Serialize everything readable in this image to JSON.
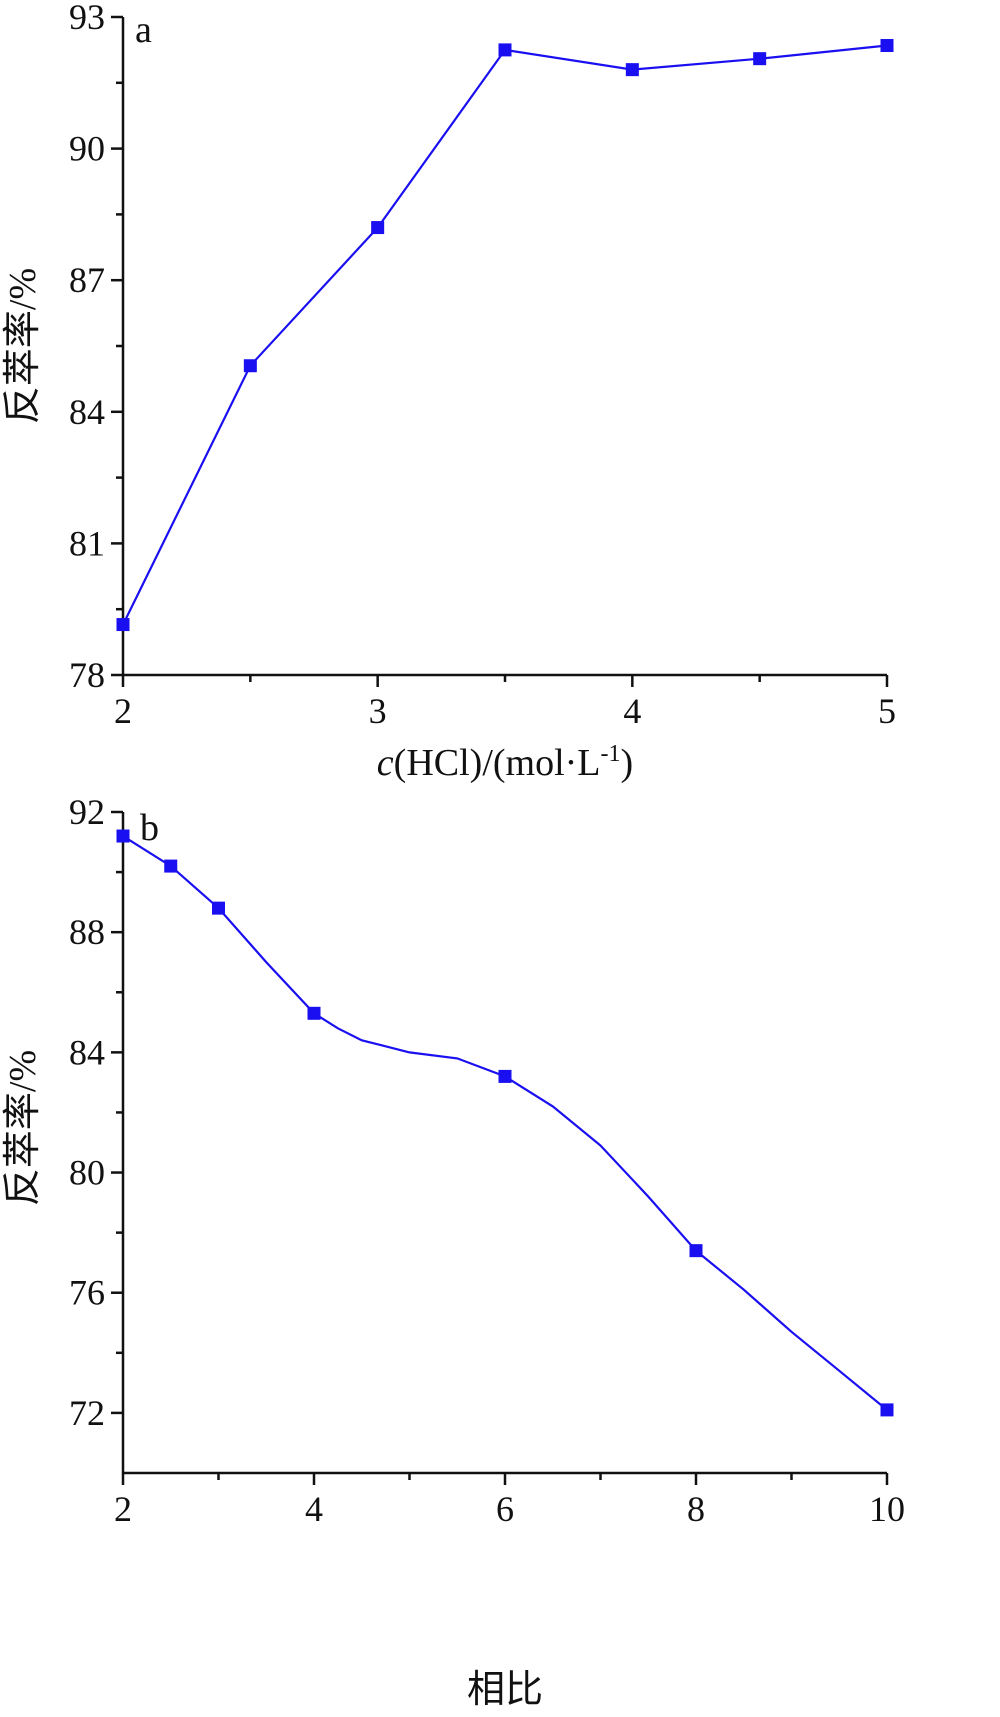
{
  "chart_data": [
    {
      "type": "line",
      "panel_label": "a",
      "xlabel_parts": [
        "c",
        "(HCl)/(mol·L",
        "-1",
        ")"
      ],
      "ylabel": "反萃率/%",
      "xlim": [
        2,
        5
      ],
      "ylim": [
        78,
        93
      ],
      "xticks": [
        2,
        3,
        4,
        5
      ],
      "yticks": [
        78,
        81,
        84,
        87,
        90,
        93
      ],
      "x": [
        2,
        2.5,
        3,
        3.5,
        4,
        4.5,
        5
      ],
      "values": [
        79.15,
        85.05,
        88.2,
        92.25,
        91.8,
        92.05,
        92.35
      ],
      "color": "#1a0ff0",
      "marker": "square",
      "grid": false
    },
    {
      "type": "line",
      "panel_label": "b",
      "xlabel": "相比",
      "ylabel": "反萃率/%",
      "xlim": [
        2,
        10
      ],
      "ylim": [
        70,
        92
      ],
      "xticks": [
        2,
        4,
        6,
        8,
        10
      ],
      "yticks": [
        72,
        76,
        80,
        84,
        88,
        92
      ],
      "x": [
        2,
        2.5,
        3,
        4,
        6,
        8,
        10
      ],
      "values": [
        91.2,
        90.2,
        88.8,
        85.3,
        83.2,
        77.4,
        72.1
      ],
      "curve_x": [
        2,
        2.5,
        3,
        3.5,
        4,
        4.25,
        4.5,
        5,
        5.5,
        6,
        6.5,
        7,
        7.5,
        8,
        8.5,
        9,
        9.5,
        10
      ],
      "curve_y": [
        91.2,
        90.2,
        88.8,
        87.0,
        85.3,
        84.8,
        84.4,
        84.0,
        83.8,
        83.2,
        82.2,
        80.9,
        79.2,
        77.4,
        76.1,
        74.7,
        73.4,
        72.1
      ],
      "color": "#1a0ff0",
      "marker": "square",
      "grid": false
    }
  ]
}
